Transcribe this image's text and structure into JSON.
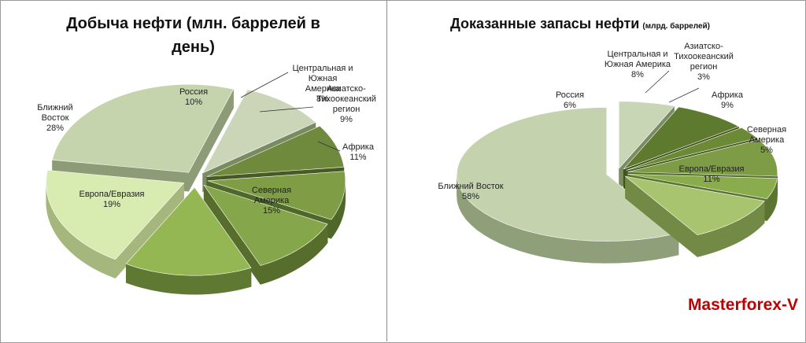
{
  "chart_data": [
    {
      "type": "pie",
      "title": "Добыча нефти (млн. баррелей в день)",
      "title_lines": [
        "Добыча нефти (млн. баррелей в",
        "день)"
      ],
      "subtitle": "",
      "exploded": true,
      "three_d": true,
      "start_angle_deg": -71,
      "series": [
        {
          "name": "",
          "values": [
            10,
            8,
            9,
            11,
            15,
            19,
            28
          ]
        }
      ],
      "categories": [
        "Россия",
        "Центральная и Южная Америка",
        "Азиатско-Тихоокеанский регион",
        "Африка",
        "Северная Америка",
        "Европа/Евразия",
        "Ближний Восток"
      ],
      "labels": [
        {
          "lines": [
            "Россия",
            "10%"
          ]
        },
        {
          "lines": [
            "Центральная и",
            "Южная",
            "Америка",
            "8%"
          ]
        },
        {
          "lines": [
            "Азиатско-",
            "Тихоокеанский",
            "регион",
            "9%"
          ]
        },
        {
          "lines": [
            "Африка",
            "11%"
          ]
        },
        {
          "lines": [
            "Северная",
            "Америка",
            "15%"
          ]
        },
        {
          "lines": [
            "Европа/Евразия",
            "19%"
          ]
        },
        {
          "lines": [
            "Ближний",
            "Восток",
            "28%"
          ]
        }
      ],
      "colors": [
        "#cbd6b8",
        "#6f8a3c",
        "#7e9d45",
        "#86a64b",
        "#94b653",
        "#d8ebb0",
        "#c6d4ad"
      ],
      "side_colors": [
        "#7a8a63",
        "#475a24",
        "#50672a",
        "#566d2c",
        "#5f7832",
        "#a5b77c",
        "#8d9b76"
      ]
    },
    {
      "type": "pie",
      "title": "Доказанные запасы нефти",
      "subtitle": "(млрд. баррелей)",
      "exploded": true,
      "three_d": true,
      "start_angle_deg": -90,
      "series": [
        {
          "name": "",
          "values": [
            6,
            8,
            3,
            9,
            5,
            11,
            58
          ]
        }
      ],
      "categories": [
        "Россия",
        "Центральная и Южная Америка",
        "Азиатско-Тихоокеанский регион",
        "Африка",
        "Северная Америка",
        "Европа/Евразия",
        "Ближний Восток"
      ],
      "labels": [
        {
          "lines": [
            "Россия",
            "6%"
          ]
        },
        {
          "lines": [
            "Центральная и",
            "Южная Америка",
            "8%"
          ]
        },
        {
          "lines": [
            "Азиатско-",
            "Тихоокеанский",
            "регион",
            "3%"
          ]
        },
        {
          "lines": [
            "Африка",
            "9%"
          ]
        },
        {
          "lines": [
            "Северная",
            "Америка",
            "5%"
          ]
        },
        {
          "lines": [
            "Европа/Евразия",
            "11%"
          ]
        },
        {
          "lines": [
            "Ближний Восток",
            "58%"
          ]
        }
      ],
      "colors": [
        "#c9d6b6",
        "#5e7a2f",
        "#6c8a36",
        "#7d9c45",
        "#8aac4d",
        "#a8c46e",
        "#c4d3ae"
      ],
      "side_colors": [
        "#7b8c64",
        "#3e5219",
        "#475e20",
        "#536b2b",
        "#5b7530",
        "#728a45",
        "#8f9f7a"
      ]
    }
  ],
  "watermark": "Masterforex-V"
}
